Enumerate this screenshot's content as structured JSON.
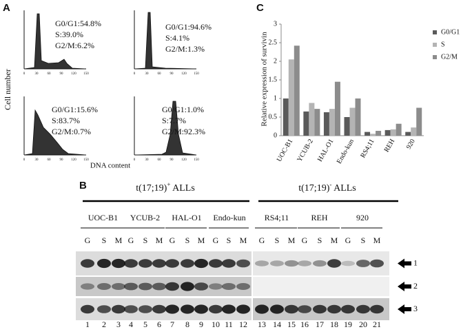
{
  "panel_a": {
    "label": "A",
    "y_label": "Cell number",
    "x_label": "DNA content",
    "x_ticks": [
      "0",
      "30",
      "60",
      "90",
      "120",
      "150"
    ],
    "plots": [
      {
        "lines": [
          "G0/G1:54.8%",
          "S:39.0%",
          "G2/M:6.2%"
        ]
      },
      {
        "lines": [
          "G0/G1:94.6%",
          "S:4.1%",
          "G2/M:1.3%"
        ]
      },
      {
        "lines": [
          "G0/G1:15.6%",
          "S:83.7%",
          "G2/M:0.7%"
        ]
      },
      {
        "lines": [
          "G0/G1:1.0%",
          "S:7.7%",
          "G2/M:92.3%"
        ]
      }
    ]
  },
  "panel_b": {
    "label": "B",
    "groups": [
      {
        "text": "t(17;19)",
        "sup": "+",
        "suffix": " ALLs"
      },
      {
        "text": "t(17;19)",
        "sup": "-",
        "suffix": " ALLs"
      }
    ],
    "cell_lines": [
      "UOC-B1",
      "YCUB-2",
      "HAL-O1",
      "Endo-kun",
      "RS4;11",
      "REH",
      "920"
    ],
    "phases": [
      "G",
      "S",
      "M"
    ],
    "lanes": [
      "1",
      "2",
      "3",
      "4",
      "5",
      "6",
      "7",
      "8",
      "9",
      "10",
      "11",
      "12",
      "13",
      "14",
      "15",
      "16",
      "17",
      "18",
      "19",
      "20",
      "21"
    ],
    "bands": [
      "1",
      "2",
      "3"
    ]
  },
  "chart_data": {
    "type": "bar",
    "label": "C",
    "y_label": "Relative expression of survivin",
    "categories": [
      "UOC-B1",
      "YCUB-2",
      "HAL-O1",
      "Endo-kun",
      "RS4;11",
      "REH",
      "920"
    ],
    "series": [
      {
        "name": "G0/G1",
        "color": "#5a5a5a",
        "values": [
          1.0,
          0.65,
          0.63,
          0.5,
          0.1,
          0.15,
          0.1
        ]
      },
      {
        "name": "S",
        "color": "#b4b4b4",
        "values": [
          2.05,
          0.88,
          0.72,
          0.75,
          0.05,
          0.17,
          0.22
        ]
      },
      {
        "name": "G2/M",
        "color": "#8c8c8c",
        "values": [
          2.42,
          0.72,
          1.45,
          1.0,
          0.13,
          0.32,
          0.75
        ]
      }
    ],
    "ylim": [
      0,
      3
    ],
    "yticks": [
      0,
      0.5,
      1,
      1.5,
      2,
      2.5,
      3
    ]
  }
}
